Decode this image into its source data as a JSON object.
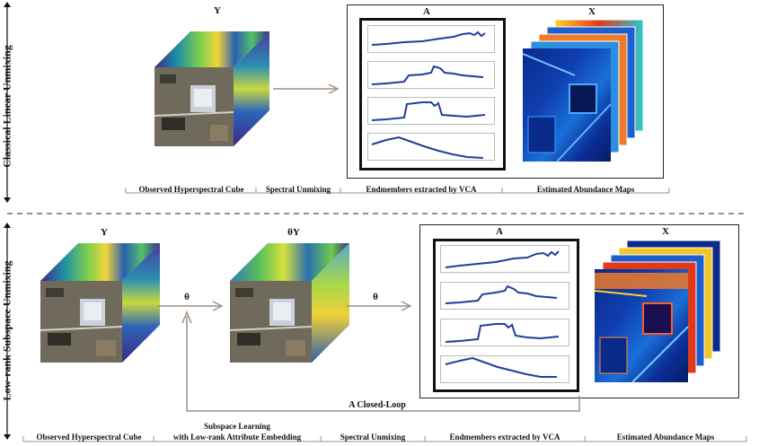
{
  "section1": {
    "side_label": "Classical Linear Unmixing",
    "cube_label": "Y",
    "endmember_label": "A",
    "abundance_label": "X",
    "captions": [
      "Observed Hyperspectral Cube",
      "Spectral Unmixing",
      "Endmembers extracted by VCA",
      "Estimated Abundance Maps"
    ]
  },
  "section2": {
    "side_label": "Low-rank Subspace Unmixing",
    "cube_label": "Y",
    "cube2_label": "θY",
    "theta1": "θ",
    "theta2": "θ",
    "endmember_label": "A",
    "abundance_label": "X",
    "loop_label": "A Closed-Loop",
    "captions": [
      "Observed Hyperspectral Cube",
      "Subspace Learning",
      "with Low-rank Attribute Embedding",
      "Spectral Unmixing",
      "Endmembers extracted by VCA",
      "Estimated Abundance Maps"
    ]
  },
  "colors": {
    "spectrum": "#1f3f9a",
    "arrow": "#a08f84",
    "divider": "#7a6a60"
  }
}
